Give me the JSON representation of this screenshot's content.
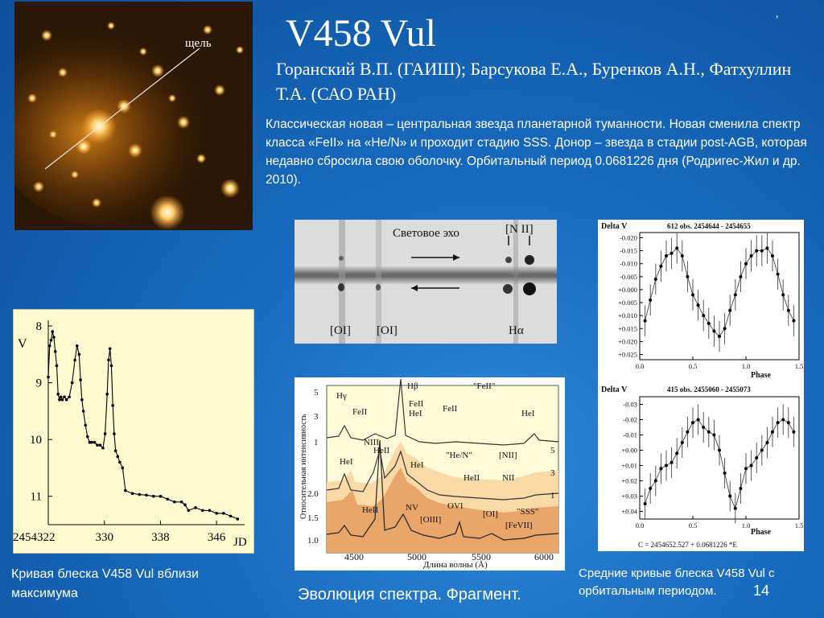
{
  "title": "V458 Vul",
  "comma": ",",
  "authors": "Горанский В.П. (ГАИШ);  Барсукова Е.А.,  Буренков А.Н., Фатхуллин Т.А. (САО РАН)",
  "description": "Классическая  новая  –  центральная  звезда  планетарной туманности. Новая  сменила  спектр  класса «FeII»  на «He/N»  и  проходит  стадию SSS.  Донор – звезда в стадии post-AGB, которая недавно сбросила свою оболочку.  Орбитальный период 0.0681226 дня (Родригес-Жил и др. 2010).",
  "nebula_image": {
    "slit_label": "щель"
  },
  "echo_panel": {
    "label": "Световое эхо",
    "nii_label": "[N II]",
    "oi_label_1": "[OI]",
    "oi_label_2": "[OI]",
    "halpha_label": "Hα"
  },
  "spectrum_panel": {
    "ylabel": "Относительная интенсивность",
    "xlabel": "Длина волны (Å)",
    "xticks": [
      "4500",
      "5000",
      "5500",
      "6000"
    ],
    "yticks_top": [
      "5",
      "3",
      "1"
    ],
    "yticks_left_mid": [
      "2.0",
      "1.5",
      "1.0"
    ],
    "yticks_right": [
      "5",
      "3",
      "1"
    ],
    "line_labels": {
      "hgamma": "Hγ",
      "hbeta": "Hβ",
      "feii_class": "\"FeII\"",
      "feii_1": "FeII",
      "feii_2": "FeII",
      "feii_3": "FeII",
      "hei_1": "HeI",
      "hei_2": "HeI",
      "hei_3": "HeI",
      "hei_4": "HeI",
      "niii": "NIII",
      "heii_1": "HeII",
      "heii_2": "HeII",
      "heii_3": "HeII",
      "hen_class": "\"He/N\"",
      "nii_1": "[NII]",
      "nii_2": "NII",
      "nv": "NV",
      "oiii": "[OIII]",
      "ovi": "OVI",
      "oi": "[OI]",
      "sss_class": "\"SSS\"",
      "fevii": "[FeVII]"
    }
  },
  "chart_data": [
    {
      "type": "line",
      "xlabel": "JD",
      "ylabel": "V",
      "x_ticks": [
        "2454322",
        "330",
        "338",
        "346"
      ],
      "y_ticks": [
        "8",
        "9",
        "10",
        "11"
      ],
      "ylim": [
        11.5,
        7.9
      ],
      "xlim": [
        322,
        350
      ],
      "series": [
        {
          "x": [
            322.0,
            322.2,
            322.4,
            322.6,
            322.8,
            323.0,
            323.2,
            323.4,
            323.6,
            323.8,
            324.0,
            324.3,
            324.6,
            325.0,
            325.4,
            325.8,
            326.1,
            326.4,
            326.6,
            326.8,
            327.0,
            327.3,
            327.6,
            327.9,
            328.2,
            328.6,
            329.0,
            329.4,
            329.8,
            330.1,
            330.4,
            330.6,
            330.8,
            331.0,
            331.2,
            331.4,
            331.6,
            331.9,
            332.2,
            332.6,
            333.0,
            334.0,
            335.0,
            336.0,
            337.0,
            338.0,
            339.0,
            340.0,
            341.0,
            341.5,
            342.0,
            343.0,
            344.0,
            345.0,
            346.0,
            347.0,
            348.0,
            349.0
          ],
          "y": [
            8.9,
            8.35,
            8.25,
            8.1,
            8.2,
            8.45,
            8.7,
            9.2,
            9.3,
            9.25,
            9.3,
            9.25,
            9.3,
            9.25,
            9.0,
            8.6,
            8.35,
            8.5,
            8.95,
            9.3,
            9.5,
            9.75,
            9.95,
            10.05,
            10.05,
            10.05,
            10.1,
            10.1,
            10.15,
            9.9,
            9.2,
            8.6,
            8.4,
            8.7,
            9.4,
            9.9,
            10.2,
            10.3,
            10.4,
            10.5,
            10.9,
            10.95,
            10.97,
            10.98,
            11.0,
            11.0,
            11.05,
            11.1,
            11.1,
            11.15,
            11.25,
            11.2,
            11.25,
            11.25,
            11.3,
            11.3,
            11.35,
            11.4
          ]
        }
      ]
    },
    {
      "type": "scatter",
      "title": "612 obs.    2454644 - 2454655",
      "ylabel": "Delta V",
      "xlabel": "Phase",
      "ylim": [
        -0.022,
        0.027
      ],
      "xlim": [
        0.0,
        1.5
      ],
      "y_ticks": [
        "-0.020",
        "-0.015",
        "-0.010",
        "-0.005",
        "+0.000",
        "+0.005",
        "+0.010",
        "+0.015",
        "+0.020",
        "+0.025"
      ],
      "x_ticks": [
        "0.0",
        "0.5",
        "1.0",
        "1.5"
      ],
      "series": [
        {
          "x": [
            0.05,
            0.1,
            0.15,
            0.2,
            0.25,
            0.3,
            0.35,
            0.4,
            0.45,
            0.5,
            0.55,
            0.6,
            0.65,
            0.7,
            0.75,
            0.8,
            0.85,
            0.9,
            0.95,
            1.0,
            1.05,
            1.1,
            1.15,
            1.2,
            1.25,
            1.3,
            1.35,
            1.4,
            1.45
          ],
          "y": [
            0.012,
            0.004,
            -0.004,
            -0.009,
            -0.013,
            -0.014,
            -0.016,
            -0.013,
            -0.005,
            0.002,
            0.006,
            0.01,
            0.013,
            0.016,
            0.018,
            0.015,
            0.008,
            0.002,
            -0.005,
            -0.01,
            -0.013,
            -0.015,
            -0.015,
            -0.016,
            -0.013,
            -0.006,
            0.002,
            0.008,
            0.012
          ],
          "err": [
            0.006,
            0.006,
            0.006,
            0.006,
            0.006,
            0.006,
            0.006,
            0.006,
            0.006,
            0.006,
            0.006,
            0.006,
            0.006,
            0.006,
            0.006,
            0.006,
            0.006,
            0.006,
            0.006,
            0.006,
            0.006,
            0.006,
            0.006,
            0.006,
            0.006,
            0.006,
            0.006,
            0.006,
            0.006
          ]
        }
      ]
    },
    {
      "type": "scatter",
      "title": "415 obs.    2455060 - 2455073",
      "ylabel": "Delta V",
      "xlabel": "Phase",
      "ylim": [
        -0.035,
        0.045
      ],
      "xlim": [
        0.0,
        1.5
      ],
      "y_ticks": [
        "-0.03",
        "-0.02",
        "-0.01",
        "+0.00",
        "+0.01",
        "+0.02",
        "+0.03",
        "+0.04"
      ],
      "x_ticks": [
        "0.0",
        "0.5",
        "1.0",
        "1.5"
      ],
      "footnote": "C = 2454652.527 + 0.0681226 *E",
      "series": [
        {
          "x": [
            0.05,
            0.1,
            0.15,
            0.2,
            0.25,
            0.3,
            0.35,
            0.4,
            0.45,
            0.5,
            0.55,
            0.6,
            0.65,
            0.7,
            0.75,
            0.8,
            0.85,
            0.9,
            0.95,
            1.0,
            1.05,
            1.1,
            1.15,
            1.2,
            1.25,
            1.3,
            1.35,
            1.4,
            1.45
          ],
          "y": [
            0.035,
            0.025,
            0.02,
            0.012,
            0.01,
            0.008,
            0.002,
            -0.005,
            -0.012,
            -0.018,
            -0.02,
            -0.015,
            -0.012,
            -0.01,
            0.0,
            0.015,
            0.03,
            0.038,
            0.025,
            0.012,
            0.01,
            0.005,
            0.0,
            -0.005,
            -0.012,
            -0.018,
            -0.02,
            -0.018,
            -0.012
          ],
          "err": [
            0.01,
            0.01,
            0.01,
            0.01,
            0.01,
            0.01,
            0.01,
            0.01,
            0.01,
            0.01,
            0.01,
            0.01,
            0.01,
            0.01,
            0.01,
            0.01,
            0.01,
            0.01,
            0.01,
            0.01,
            0.01,
            0.01,
            0.01,
            0.01,
            0.01,
            0.01,
            0.01,
            0.01,
            0.01
          ]
        }
      ]
    }
  ],
  "captions": {
    "light_curve": "Кривая блеска V458 Vul вблизи максимума",
    "spectrum": "Эволюция спектра. Фрагмент.",
    "orbital": "Средние кривые блеска V458 Vul с орбитальным периодом."
  },
  "page_number": "14"
}
